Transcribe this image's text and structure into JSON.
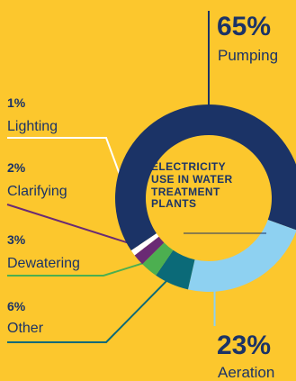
{
  "colors": {
    "background": "#fcc72d",
    "text": "#1b3366"
  },
  "chart_data": {
    "type": "pie",
    "donut": true,
    "title_lines": [
      "ELECTRICITY",
      "USE IN WATER",
      "TREATMENT",
      "PLANTS"
    ],
    "slices": [
      {
        "label": "Pumping",
        "value": 65,
        "display": "65%",
        "color": "#1b3366"
      },
      {
        "label": "Aeration",
        "value": 23,
        "display": "23%",
        "color": "#8ed1f1"
      },
      {
        "label": "Other",
        "value": 6,
        "display": "6%",
        "color": "#0b6a78"
      },
      {
        "label": "Dewatering",
        "value": 3,
        "display": "3%",
        "color": "#4caf50"
      },
      {
        "label": "Clarifying",
        "value": 2,
        "display": "2%",
        "color": "#6a2a74"
      },
      {
        "label": "Lighting",
        "value": 1,
        "display": "1%",
        "color": "#ffffff"
      }
    ]
  }
}
